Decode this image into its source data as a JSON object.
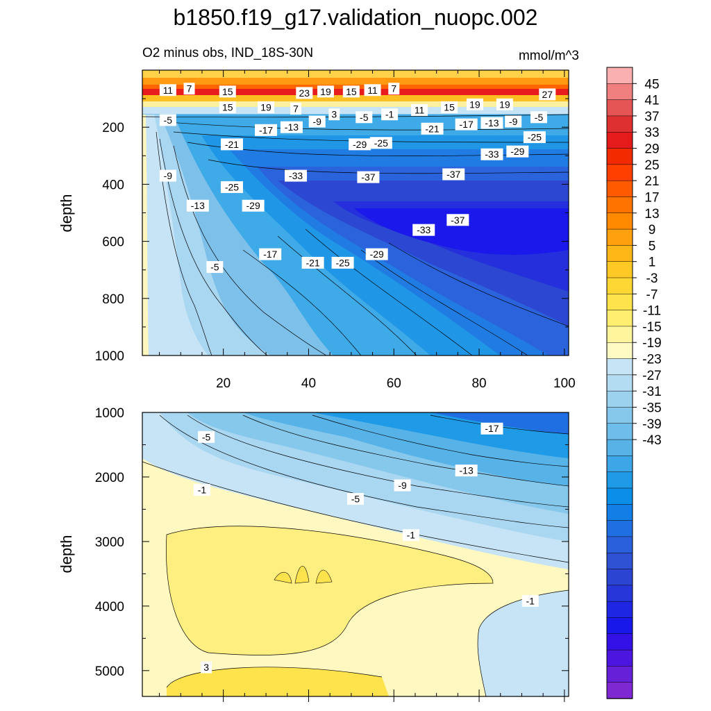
{
  "title": "b1850.f19_g17.validation_nuopc.002",
  "subtitle_left": "O2 minus obs, IND_18S-30N",
  "subtitle_right": "mmol/m^3",
  "colors": {
    "levels_pos": [
      "#fff9c4",
      "#fff59d",
      "#ffee70",
      "#ffe34d",
      "#ffd735",
      "#ffc925",
      "#ffb718",
      "#ffa10e",
      "#ff8a00",
      "#ff7300",
      "#ff5a00",
      "#ff3f00",
      "#f22a00",
      "#e51a1a",
      "#de3030",
      "#e65555",
      "#f07f7f",
      "#fab0b0"
    ],
    "levels_neg": [
      "#c6e4f5",
      "#b3dcf2",
      "#9dd2ef",
      "#86c8ec",
      "#6fbdea",
      "#57b2e8",
      "#3da6e6",
      "#1e9ae6",
      "#0a8ee8",
      "#137ee6",
      "#206fe2",
      "#2a60dc",
      "#2f52d4",
      "#2c44d2",
      "#2736d9",
      "#1f26e3",
      "#1818ea",
      "#3311e6",
      "#4c16e0",
      "#6620d8",
      "#7d28d0"
    ]
  },
  "chart_data": [
    {
      "type": "contour",
      "panel": "upper",
      "ylabel": "depth",
      "x_ticks": [
        20,
        40,
        60,
        80,
        100
      ],
      "y_ticks": [
        200,
        400,
        600,
        800,
        1000
      ],
      "xlim": [
        1,
        101
      ],
      "ylim": [
        1000,
        0
      ],
      "contour_labels": [
        {
          "x": 7,
          "y": 70,
          "text": "11"
        },
        {
          "x": 12,
          "y": 65,
          "text": "7"
        },
        {
          "x": 21,
          "y": 75,
          "text": "15"
        },
        {
          "x": 39,
          "y": 80,
          "text": "23"
        },
        {
          "x": 44,
          "y": 75,
          "text": "19"
        },
        {
          "x": 50,
          "y": 75,
          "text": "15"
        },
        {
          "x": 55,
          "y": 70,
          "text": "11"
        },
        {
          "x": 60,
          "y": 65,
          "text": "7"
        },
        {
          "x": 96,
          "y": 85,
          "text": "27"
        },
        {
          "x": 21,
          "y": 130,
          "text": "15"
        },
        {
          "x": 30,
          "y": 130,
          "text": "19"
        },
        {
          "x": 37,
          "y": 135,
          "text": "7"
        },
        {
          "x": 46,
          "y": 155,
          "text": "3"
        },
        {
          "x": 53,
          "y": 165,
          "text": "-5"
        },
        {
          "x": 59,
          "y": 155,
          "text": "-1"
        },
        {
          "x": 66,
          "y": 140,
          "text": "11"
        },
        {
          "x": 73,
          "y": 130,
          "text": "15"
        },
        {
          "x": 79,
          "y": 120,
          "text": "19"
        },
        {
          "x": 86,
          "y": 120,
          "text": "19"
        },
        {
          "x": 7,
          "y": 175,
          "text": "-5"
        },
        {
          "x": 42,
          "y": 180,
          "text": "-9"
        },
        {
          "x": 36,
          "y": 200,
          "text": "-13"
        },
        {
          "x": 30,
          "y": 210,
          "text": "-17"
        },
        {
          "x": 22,
          "y": 260,
          "text": "-21"
        },
        {
          "x": 94,
          "y": 165,
          "text": "-5"
        },
        {
          "x": 88,
          "y": 180,
          "text": "-9"
        },
        {
          "x": 83,
          "y": 185,
          "text": "-13"
        },
        {
          "x": 77,
          "y": 190,
          "text": "-17"
        },
        {
          "x": 69,
          "y": 205,
          "text": "-21"
        },
        {
          "x": 93,
          "y": 235,
          "text": "-25"
        },
        {
          "x": 52,
          "y": 260,
          "text": "-29"
        },
        {
          "x": 57,
          "y": 255,
          "text": "-25"
        },
        {
          "x": 83,
          "y": 295,
          "text": "-33"
        },
        {
          "x": 89,
          "y": 285,
          "text": "-29"
        },
        {
          "x": 37,
          "y": 370,
          "text": "-33"
        },
        {
          "x": 54,
          "y": 375,
          "text": "-37"
        },
        {
          "x": 74,
          "y": 365,
          "text": "-37"
        },
        {
          "x": 7,
          "y": 370,
          "text": "-9"
        },
        {
          "x": 22,
          "y": 410,
          "text": "-25"
        },
        {
          "x": 27,
          "y": 475,
          "text": "-29"
        },
        {
          "x": 14,
          "y": 475,
          "text": "-13"
        },
        {
          "x": 75,
          "y": 525,
          "text": "-37"
        },
        {
          "x": 67,
          "y": 560,
          "text": "-33"
        },
        {
          "x": 31,
          "y": 645,
          "text": "-17"
        },
        {
          "x": 41,
          "y": 675,
          "text": "-21"
        },
        {
          "x": 48,
          "y": 675,
          "text": "-25"
        },
        {
          "x": 56,
          "y": 645,
          "text": "-29"
        },
        {
          "x": 18,
          "y": 690,
          "text": "-5"
        }
      ]
    },
    {
      "type": "contour",
      "panel": "lower",
      "ylabel": "depth",
      "y_ticks": [
        1000,
        2000,
        3000,
        4000,
        5000
      ],
      "xlim": [
        1,
        101
      ],
      "ylim": [
        5400,
        1000
      ],
      "contour_labels": [
        {
          "x": 16,
          "y": 1380,
          "text": "-5"
        },
        {
          "x": 83,
          "y": 1250,
          "text": "-17"
        },
        {
          "x": 77,
          "y": 1900,
          "text": "-13"
        },
        {
          "x": 62,
          "y": 2130,
          "text": "-9"
        },
        {
          "x": 51,
          "y": 2340,
          "text": "-5"
        },
        {
          "x": 15,
          "y": 2200,
          "text": "-1"
        },
        {
          "x": 64,
          "y": 2900,
          "text": "-1"
        },
        {
          "x": 92,
          "y": 3920,
          "text": "-1"
        },
        {
          "x": 16,
          "y": 4950,
          "text": "3"
        }
      ]
    }
  ],
  "colorbar": {
    "labels": [
      "45",
      "41",
      "37",
      "33",
      "29",
      "25",
      "21",
      "17",
      "13",
      "9",
      "5",
      "1",
      "-3",
      "-7",
      "-11",
      "-15",
      "-19",
      "-23",
      "-27",
      "-31",
      "-35",
      "-39",
      "-43"
    ]
  }
}
